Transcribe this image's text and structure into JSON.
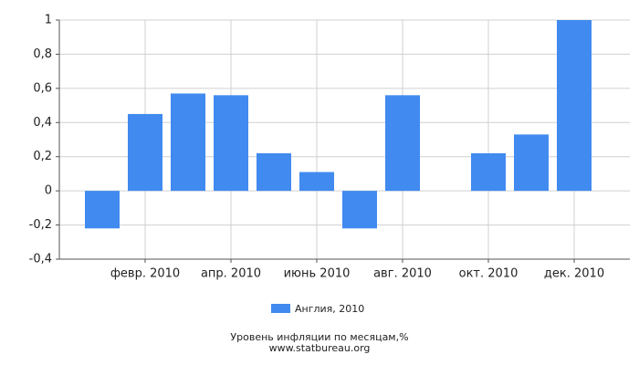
{
  "chart_data": {
    "type": "bar",
    "title": "Уровень инфляции по месяцам,%",
    "source": "www.statbureau.org",
    "categories": [
      null,
      "февр. 2010",
      null,
      "апр. 2010",
      null,
      "июнь 2010",
      null,
      "авг. 2010",
      null,
      "окт. 2010",
      null,
      "дек. 2010"
    ],
    "series": [
      {
        "name": "Англия, 2010",
        "color": "#418af0",
        "values": [
          -0.22,
          0.45,
          0.57,
          0.56,
          0.22,
          0.11,
          -0.22,
          0.56,
          0,
          0.22,
          0.33,
          1
        ]
      }
    ],
    "ylim": [
      -0.4,
      1
    ],
    "yticks": [
      {
        "value": -0.4,
        "label": "-0,4"
      },
      {
        "value": -0.2,
        "label": "-0,2"
      },
      0,
      {
        "value": 0.2,
        "label": "0,2"
      },
      {
        "value": 0.4,
        "label": "0,4"
      },
      {
        "value": 0.6,
        "label": "0,6"
      },
      {
        "value": 0.8,
        "label": "0,8"
      },
      1
    ],
    "grid": true
  }
}
